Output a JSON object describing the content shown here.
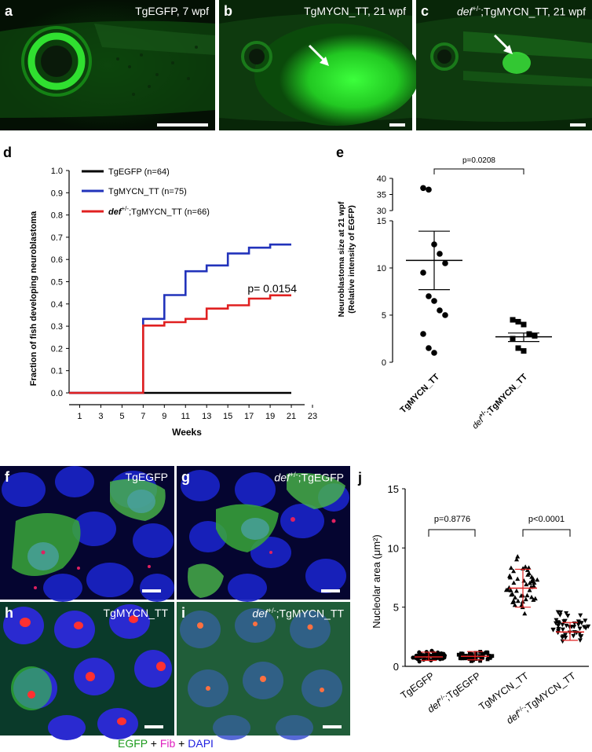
{
  "colors": {
    "egfp_green": "#1fbf2a",
    "black": "#000000",
    "blue": "#2233bb",
    "red": "#e02020",
    "fib": "#e020c0",
    "dapi": "#2020e0"
  },
  "panels": {
    "a": {
      "letter": "a",
      "label": "TgEGFP, 7 wpf"
    },
    "b": {
      "letter": "b",
      "label": "TgMYCN_TT, 21 wpf"
    },
    "c": {
      "letter": "c",
      "label_italic": "def",
      "label_sup": "+/-",
      "label_rest": ";TgMYCN_TT, 21 wpf"
    },
    "d": {
      "letter": "d"
    },
    "e": {
      "letter": "e"
    },
    "f": {
      "letter": "f",
      "label": "TgEGFP"
    },
    "g": {
      "letter": "g",
      "label_italic": "def",
      "label_sup": "+/-",
      "label_rest": ";TgEGFP"
    },
    "h": {
      "letter": "h",
      "label": "TgMYCN_TT"
    },
    "i": {
      "letter": "i",
      "label_italic": "def",
      "label_sup": "+/-",
      "label_rest": ";TgMYCN_TT"
    },
    "j": {
      "letter": "j"
    }
  },
  "stain_caption": {
    "egfp": "EGFP",
    "plus1": " + ",
    "fib": "Fib",
    "plus2": " + ",
    "dapi": "DAPI"
  },
  "chart_data": [
    {
      "id": "d",
      "type": "line",
      "ylabel": "Fraction of fish developing neuroblastoma",
      "xlabel": "Weeks",
      "xticks": [
        1,
        3,
        5,
        7,
        9,
        11,
        13,
        15,
        17,
        19,
        21,
        23
      ],
      "yticks": [
        "0.0",
        "0.1",
        "0.2",
        "0.3",
        "0.4",
        "0.5",
        "0.6",
        "0.7",
        "0.8",
        "0.9",
        "1.0"
      ],
      "xlim": [
        0,
        23
      ],
      "ylim": [
        0,
        1.0
      ],
      "pvalue": "p= 0.0154",
      "series": [
        {
          "name": "TgEGFP (n=64)",
          "color": "#000000",
          "steps": [
            [
              0,
              0
            ],
            [
              21,
              0
            ]
          ]
        },
        {
          "name": "TgMYCN_TT (n=75)",
          "color": "#2233bb",
          "steps": [
            [
              0,
              0
            ],
            [
              7,
              0
            ],
            [
              7,
              0.333
            ],
            [
              9,
              0.333
            ],
            [
              9,
              0.44
            ],
            [
              11,
              0.44
            ],
            [
              11,
              0.547
            ],
            [
              13,
              0.547
            ],
            [
              13,
              0.573
            ],
            [
              15,
              0.573
            ],
            [
              15,
              0.627
            ],
            [
              17,
              0.627
            ],
            [
              17,
              0.653
            ],
            [
              19,
              0.653
            ],
            [
              19,
              0.667
            ],
            [
              21,
              0.667
            ]
          ]
        },
        {
          "name_italic": "def",
          "name_sup": "+/-",
          "name_rest": ";TgMYCN_TT (n=66)",
          "color": "#e02020",
          "steps": [
            [
              0,
              0
            ],
            [
              7,
              0
            ],
            [
              7,
              0.303
            ],
            [
              9,
              0.303
            ],
            [
              9,
              0.318
            ],
            [
              11,
              0.318
            ],
            [
              11,
              0.333
            ],
            [
              13,
              0.333
            ],
            [
              13,
              0.379
            ],
            [
              15,
              0.379
            ],
            [
              15,
              0.394
            ],
            [
              17,
              0.394
            ],
            [
              17,
              0.424
            ],
            [
              19,
              0.424
            ],
            [
              19,
              0.439
            ],
            [
              21,
              0.439
            ]
          ]
        }
      ]
    },
    {
      "id": "e",
      "type": "scatter",
      "ylabel_line1": "Neuroblastoma size at 21 wpf",
      "ylabel_line2": "(Relative intensity of EGFP)",
      "yticks_lower": [
        "0",
        "5",
        "10",
        "15"
      ],
      "yticks_upper": [
        "30",
        "35",
        "40"
      ],
      "pvalue": "p=0.0208",
      "categories": [
        "TgMYCN_TT",
        "def+/-;TgMYCN_TT"
      ],
      "cat1_label": "TgMYCN_TT",
      "cat2_italic": "def",
      "cat2_sup": "+/-",
      "cat2_rest": ";TgMYCN_TT",
      "group1": {
        "values": [
          37.0,
          36.5,
          12.5,
          11.5,
          10.5,
          9.5,
          7.0,
          6.5,
          5.5,
          5.0,
          3.0,
          1.5,
          1.0
        ],
        "mean": 10.8,
        "sem_low": 7.7,
        "sem_high": 13.9
      },
      "group2": {
        "values": [
          4.5,
          4.3,
          4.0,
          3.0,
          2.8,
          2.5,
          1.5,
          1.2
        ],
        "mean": 2.7,
        "sem_low": 2.2,
        "sem_high": 3.1
      }
    },
    {
      "id": "j",
      "type": "scatter",
      "ylabel": "Nucleolar area (μm²)",
      "yticks": [
        "0",
        "5",
        "10",
        "15"
      ],
      "ylim": [
        0,
        15
      ],
      "p1": "p=0.8776",
      "p2": "p<0.0001",
      "cat_labels": [
        {
          "plain": "TgEGFP"
        },
        {
          "italic": "def",
          "sup": "+/-",
          "rest": ";TgEGFP"
        },
        {
          "plain": "TgMYCN_TT"
        },
        {
          "italic": "def",
          "sup": "+/-",
          "rest": ";TgMYCN_TT"
        }
      ],
      "groups": [
        {
          "marker": "circle",
          "mean": 0.8,
          "sd_low": 0.5,
          "sd_high": 1.2,
          "min": 0.3,
          "max": 1.5
        },
        {
          "marker": "square",
          "mean": 0.85,
          "sd_low": 0.55,
          "sd_high": 1.25,
          "min": 0.3,
          "max": 1.5
        },
        {
          "marker": "triangle-up",
          "mean": 6.6,
          "sd_low": 5.0,
          "sd_high": 8.2,
          "min": 3.8,
          "max": 9.9
        },
        {
          "marker": "triangle-down",
          "mean": 2.9,
          "sd_low": 2.2,
          "sd_high": 3.7,
          "min": 1.4,
          "max": 5.4
        }
      ]
    }
  ]
}
